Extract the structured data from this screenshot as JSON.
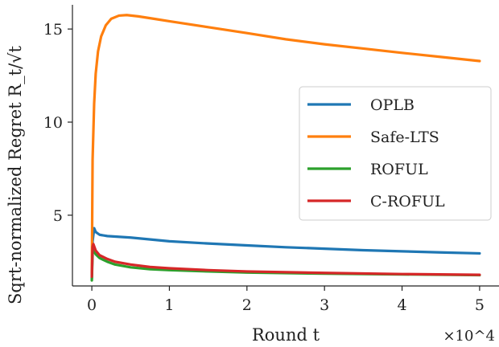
{
  "chart_data": {
    "type": "line",
    "xlabel": "Round t",
    "ylabel": "Sqrt-normalized Regret R_t/√t",
    "x_multiplier_label": "×10^4",
    "xlim": [
      -2500,
      52500
    ],
    "ylim": [
      1.2,
      16.3
    ],
    "x_ticks": [
      0,
      10000,
      20000,
      30000,
      40000,
      50000
    ],
    "x_tick_labels": [
      "0",
      "1",
      "2",
      "3",
      "4",
      "5"
    ],
    "y_ticks": [
      5,
      10,
      15
    ],
    "y_tick_labels": [
      "5",
      "10",
      "15"
    ],
    "grid": false,
    "legend_position": "center-right",
    "series": [
      {
        "name": "OPLB",
        "color": "#1f77b4",
        "points": [
          [
            0,
            1.6
          ],
          [
            100,
            3.6
          ],
          [
            300,
            4.3
          ],
          [
            500,
            4.1
          ],
          [
            1000,
            3.95
          ],
          [
            2000,
            3.88
          ],
          [
            5000,
            3.8
          ],
          [
            10000,
            3.6
          ],
          [
            15000,
            3.48
          ],
          [
            20000,
            3.38
          ],
          [
            25000,
            3.28
          ],
          [
            30000,
            3.2
          ],
          [
            35000,
            3.12
          ],
          [
            40000,
            3.06
          ],
          [
            45000,
            3.0
          ],
          [
            50000,
            2.95
          ]
        ]
      },
      {
        "name": "Safe-LTS",
        "color": "#ff7f0e",
        "points": [
          [
            0,
            1.9
          ],
          [
            100,
            8.0
          ],
          [
            300,
            11.0
          ],
          [
            500,
            12.6
          ],
          [
            800,
            13.8
          ],
          [
            1200,
            14.6
          ],
          [
            1800,
            15.2
          ],
          [
            2500,
            15.55
          ],
          [
            3500,
            15.72
          ],
          [
            4500,
            15.75
          ],
          [
            6000,
            15.68
          ],
          [
            8000,
            15.55
          ],
          [
            10000,
            15.42
          ],
          [
            15000,
            15.1
          ],
          [
            20000,
            14.78
          ],
          [
            25000,
            14.45
          ],
          [
            30000,
            14.18
          ],
          [
            35000,
            13.95
          ],
          [
            40000,
            13.72
          ],
          [
            45000,
            13.5
          ],
          [
            50000,
            13.28
          ]
        ]
      },
      {
        "name": "ROFUL",
        "color": "#2ca02c",
        "points": [
          [
            0,
            1.5
          ],
          [
            100,
            2.9
          ],
          [
            200,
            3.2
          ],
          [
            500,
            2.9
          ],
          [
            1000,
            2.7
          ],
          [
            2000,
            2.5
          ],
          [
            3000,
            2.35
          ],
          [
            5000,
            2.2
          ],
          [
            7500,
            2.1
          ],
          [
            10000,
            2.05
          ],
          [
            15000,
            1.98
          ],
          [
            20000,
            1.92
          ],
          [
            30000,
            1.86
          ],
          [
            40000,
            1.82
          ],
          [
            50000,
            1.78
          ]
        ]
      },
      {
        "name": "C-ROFUL",
        "color": "#d62728",
        "points": [
          [
            0,
            1.7
          ],
          [
            100,
            3.3
          ],
          [
            200,
            3.45
          ],
          [
            500,
            3.1
          ],
          [
            1000,
            2.85
          ],
          [
            2000,
            2.65
          ],
          [
            3000,
            2.5
          ],
          [
            5000,
            2.35
          ],
          [
            7500,
            2.22
          ],
          [
            10000,
            2.15
          ],
          [
            15000,
            2.05
          ],
          [
            20000,
            1.98
          ],
          [
            30000,
            1.9
          ],
          [
            40000,
            1.84
          ],
          [
            50000,
            1.8
          ]
        ]
      }
    ]
  }
}
